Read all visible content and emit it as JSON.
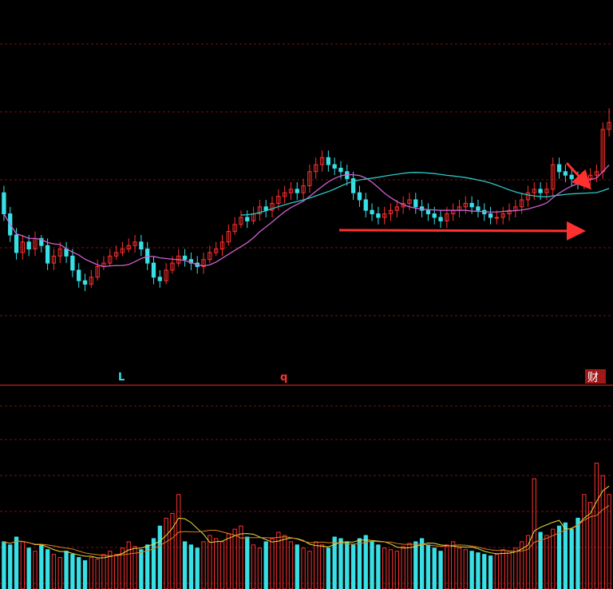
{
  "chart_data": {
    "type": "candlestick",
    "title": "",
    "xlabel": "",
    "ylabel": "",
    "grid": true,
    "colors": {
      "background": "#000000",
      "up": "#ff3030",
      "down": "#38e0e6",
      "ma_short": "#d060d0",
      "ma_long": "#2ec8c8",
      "vol_ma": "#e8e040",
      "vol_ma2": "#e08020",
      "grid": "#7a1010",
      "divider": "#c02020"
    },
    "markers": [
      {
        "text": "L",
        "color": "#38e0e6"
      },
      {
        "text": "q",
        "color": "#ff3030"
      },
      {
        "text": "财",
        "color": "#ffffff"
      }
    ],
    "price_ylim": [
      0,
      100
    ],
    "volume_ylim": [
      0,
      100
    ],
    "price_series": {
      "name": "",
      "open": [
        52,
        46,
        40,
        35,
        38,
        36,
        39,
        37,
        32,
        34,
        36,
        34,
        30,
        27,
        26,
        28,
        31,
        32,
        34,
        35,
        36,
        37,
        38,
        36,
        32,
        28,
        27,
        30,
        32,
        34,
        33,
        32,
        31,
        33,
        35,
        36,
        38,
        41,
        43,
        45,
        44,
        46,
        48,
        47,
        49,
        51,
        52,
        53,
        52,
        54,
        58,
        60,
        62,
        60,
        59,
        58,
        56,
        52,
        50,
        47,
        46,
        45,
        46,
        47,
        48,
        49,
        50,
        48,
        47,
        46,
        45,
        44,
        46,
        47,
        48,
        49,
        48,
        47,
        46,
        45,
        45,
        46,
        47,
        48,
        50,
        52,
        53,
        52,
        53,
        60,
        58,
        57,
        56,
        55,
        56,
        57,
        58,
        70
      ],
      "close": [
        46,
        40,
        35,
        38,
        36,
        39,
        37,
        32,
        34,
        36,
        34,
        30,
        27,
        26,
        28,
        31,
        32,
        34,
        35,
        36,
        37,
        38,
        36,
        32,
        28,
        27,
        30,
        32,
        34,
        33,
        32,
        31,
        33,
        35,
        36,
        38,
        41,
        43,
        45,
        44,
        46,
        48,
        47,
        49,
        51,
        52,
        53,
        52,
        54,
        58,
        60,
        62,
        60,
        59,
        58,
        56,
        52,
        50,
        47,
        46,
        45,
        46,
        47,
        48,
        49,
        50,
        48,
        47,
        46,
        45,
        44,
        46,
        47,
        48,
        49,
        48,
        47,
        46,
        45,
        45,
        46,
        47,
        48,
        50,
        52,
        53,
        52,
        53,
        60,
        58,
        57,
        56,
        55,
        56,
        57,
        58,
        70,
        72
      ],
      "high": [
        54,
        48,
        42,
        40,
        40,
        41,
        40,
        39,
        36,
        38,
        38,
        36,
        32,
        29,
        30,
        33,
        34,
        36,
        37,
        38,
        39,
        40,
        40,
        38,
        34,
        30,
        32,
        34,
        36,
        36,
        35,
        34,
        35,
        37,
        38,
        40,
        43,
        45,
        47,
        47,
        48,
        50,
        50,
        51,
        53,
        54,
        55,
        55,
        56,
        60,
        62,
        64,
        64,
        62,
        61,
        60,
        58,
        54,
        52,
        49,
        48,
        48,
        49,
        50,
        51,
        52,
        52,
        50,
        49,
        48,
        47,
        48,
        49,
        50,
        51,
        51,
        50,
        49,
        48,
        47,
        48,
        49,
        50,
        52,
        54,
        55,
        55,
        55,
        62,
        62,
        60,
        59,
        58,
        58,
        59,
        60,
        72,
        76
      ],
      "low": [
        44,
        38,
        33,
        33,
        34,
        34,
        35,
        30,
        30,
        32,
        32,
        28,
        25,
        24,
        25,
        27,
        30,
        31,
        33,
        34,
        35,
        35,
        34,
        30,
        26,
        25,
        26,
        29,
        31,
        31,
        30,
        29,
        29,
        32,
        34,
        34,
        37,
        40,
        42,
        42,
        43,
        44,
        45,
        45,
        47,
        49,
        50,
        50,
        50,
        52,
        56,
        58,
        58,
        57,
        56,
        54,
        50,
        48,
        45,
        44,
        43,
        43,
        44,
        45,
        46,
        47,
        46,
        45,
        44,
        43,
        42,
        42,
        44,
        45,
        46,
        46,
        45,
        44,
        43,
        43,
        43,
        44,
        45,
        46,
        48,
        50,
        50,
        50,
        51,
        56,
        55,
        54,
        53,
        53,
        54,
        55,
        56,
        68
      ]
    },
    "volume_series": {
      "name": "",
      "values": [
        30,
        28,
        33,
        30,
        26,
        24,
        28,
        25,
        22,
        20,
        24,
        22,
        20,
        18,
        20,
        19,
        22,
        24,
        22,
        26,
        30,
        27,
        25,
        28,
        32,
        40,
        45,
        48,
        60,
        30,
        28,
        26,
        30,
        34,
        32,
        30,
        35,
        38,
        40,
        33,
        28,
        26,
        30,
        32,
        36,
        34,
        30,
        28,
        26,
        24,
        30,
        28,
        26,
        33,
        32,
        30,
        28,
        32,
        34,
        30,
        28,
        26,
        25,
        24,
        27,
        29,
        30,
        32,
        28,
        26,
        24,
        28,
        30,
        26,
        25,
        24,
        23,
        22,
        21,
        22,
        25,
        24,
        26,
        30,
        34,
        70,
        36,
        34,
        38,
        40,
        42,
        38,
        45,
        60,
        55,
        80,
        72,
        60
      ]
    }
  }
}
